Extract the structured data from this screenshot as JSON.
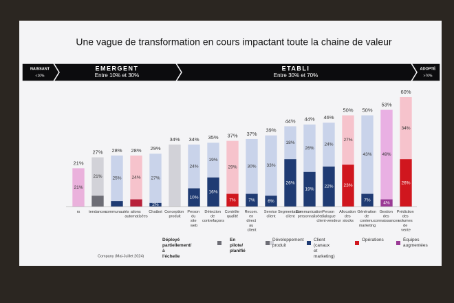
{
  "chart_data": {
    "type": "bar",
    "stacked": true,
    "title": "Une vague de transformation en cours impactant toute la chaine de valeur",
    "phases": [
      {
        "name": "NAISSANT",
        "range": "<10%"
      },
      {
        "name": "EMERGENT",
        "range": "Entre 10% et 30%"
      },
      {
        "name": "ETABLI",
        "range": "Entre 30% et 70%"
      },
      {
        "name": "ADOPTÉ",
        "range": ">70%"
      }
    ],
    "categories": [
      "rs",
      "tendances",
      "communautés",
      "ations automatisées",
      "Chatbot",
      "Conception produit",
      "Person du site web",
      "Détection de contrefaçons",
      "Contrôle qualité",
      "Recom. en direct au client",
      "Service client",
      "Segmentation client",
      "Communication personnalisée",
      "Person dialogue client-vendeur",
      "Allocation des stocks",
      "Génération de contenu marketing",
      "Gestion des connaissances",
      "Prédiction des volumes de vente"
    ],
    "series": [
      {
        "name": "Déployé partiellement/ à l'échelle",
        "values": [
          0,
          6,
          3,
          4,
          2,
          0,
          10,
          16,
          7,
          7,
          6,
          26,
          19,
          22,
          23,
          7,
          4,
          26
        ],
        "value_labels": [
          null,
          null,
          null,
          null,
          "2%",
          null,
          "10%",
          "16%",
          "7%",
          "7%",
          "6%",
          "26%",
          "19%",
          "22%",
          "23%",
          "7%",
          "4%",
          "26%"
        ],
        "colors": [
          "#b8213a",
          "#6d6d75",
          "#1f3b73",
          "#b8213a",
          "#1f3b73",
          "#6d6d75",
          "#1f3b73",
          "#1f3b73",
          "#d0161e",
          "#1f3b73",
          "#1f3b73",
          "#1f3b73",
          "#1f3b73",
          "#1f3b73",
          "#d0161e",
          "#1f3b73",
          "#9a3a95",
          "#d0161e"
        ]
      },
      {
        "name": "En pilote/ planifié",
        "values": [
          21,
          21,
          25,
          24,
          27,
          34,
          24,
          19,
          29,
          30,
          33,
          18,
          26,
          24,
          27,
          43,
          49,
          34
        ],
        "value_labels": [
          "21%",
          "21%",
          "25%",
          "24%",
          "27%",
          null,
          "24%",
          "19%",
          "29%",
          "30%",
          "33%",
          "18%",
          "26%",
          "24%",
          "27%",
          "43%",
          "49%",
          "34%"
        ],
        "colors": [
          "#eab1dc",
          "#d2d2d8",
          "#c9d3ea",
          "#f6c3cc",
          "#c9d3ea",
          "#d2d2d8",
          "#c9d3ea",
          "#c9d3ea",
          "#f6c3cc",
          "#c9d3ea",
          "#c9d3ea",
          "#c9d3ea",
          "#c9d3ea",
          "#c9d3ea",
          "#f6c3cc",
          "#c9d3ea",
          "#e9b0e3",
          "#f6c3cc"
        ]
      }
    ],
    "totals": [
      21,
      27,
      28,
      28,
      29,
      34,
      34,
      35,
      37,
      37,
      39,
      44,
      44,
      46,
      50,
      50,
      53,
      60
    ],
    "total_labels": [
      "21%",
      "27%",
      "28%",
      "28%",
      "29%",
      "34%",
      "34%",
      "35%",
      "37%",
      "37%",
      "39%",
      "44%",
      "44%",
      "46%",
      "50%",
      "50%",
      "53%",
      "60%"
    ],
    "legend": [
      {
        "name": "Développement produit",
        "color": "#6d6d75"
      },
      {
        "name": "Client (canaux et marketing)",
        "color": "#1f3b73"
      },
      {
        "name": "Opérations",
        "color": "#d0161e"
      },
      {
        "name": "Équipes augmentées",
        "color": "#9a3a95"
      }
    ],
    "source": "Company (Mai-Juillet 2024)"
  }
}
